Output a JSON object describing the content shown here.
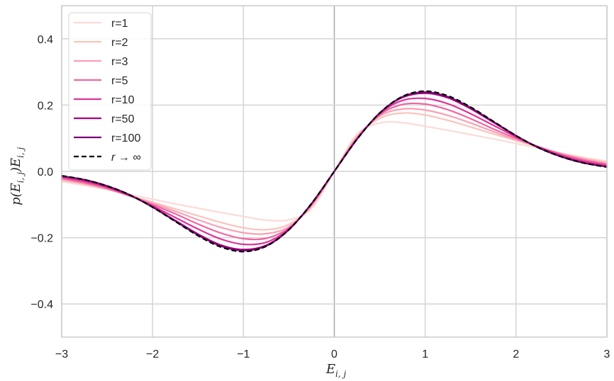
{
  "chart_data": {
    "type": "line",
    "title": "",
    "xlabel": "E_{i,j}",
    "ylabel": "p(E_{i,j})E_{i,j}",
    "xlim": [
      -3,
      3
    ],
    "ylim": [
      -0.5,
      0.5
    ],
    "grid": true,
    "legend_position": "upper left",
    "xticks": [
      -3,
      -2,
      -1,
      0,
      1,
      2,
      3
    ],
    "xtick_labels": [
      "−3",
      "−2",
      "−1",
      "0",
      "1",
      "2",
      "3"
    ],
    "yticks": [
      -0.4,
      -0.2,
      0.0,
      0.2,
      0.4
    ],
    "ytick_labels": [
      "−0.4",
      "−0.2",
      "0.0",
      "0.2",
      "0.4"
    ],
    "x_positive": [
      0,
      0.25,
      0.5,
      0.75,
      1.0,
      1.25,
      1.5,
      1.75,
      2.0,
      2.25,
      2.5,
      2.75,
      3.0
    ],
    "antisymmetric": true,
    "series": [
      {
        "name": "r=1",
        "color": "#fcdad6",
        "dashed": false,
        "values": [
          0,
          0.112,
          0.146,
          0.147,
          0.136,
          0.124,
          0.111,
          0.098,
          0.084,
          0.07,
          0.055,
          0.042,
          0.031
        ]
      },
      {
        "name": "r=2",
        "color": "#fbc3bd",
        "dashed": false,
        "values": [
          0,
          0.106,
          0.16,
          0.176,
          0.17,
          0.154,
          0.134,
          0.113,
          0.093,
          0.073,
          0.054,
          0.039,
          0.027
        ]
      },
      {
        "name": "r=3",
        "color": "#f9a0b4",
        "dashed": false,
        "values": [
          0,
          0.103,
          0.167,
          0.188,
          0.185,
          0.169,
          0.146,
          0.12,
          0.096,
          0.074,
          0.053,
          0.037,
          0.024
        ]
      },
      {
        "name": "r=5",
        "color": "#f066a2",
        "dashed": false,
        "values": [
          0,
          0.1,
          0.171,
          0.202,
          0.203,
          0.186,
          0.159,
          0.128,
          0.1,
          0.074,
          0.051,
          0.034,
          0.021
        ]
      },
      {
        "name": "r=10",
        "color": "#dd3497",
        "dashed": false,
        "values": [
          0,
          0.098,
          0.174,
          0.214,
          0.22,
          0.204,
          0.174,
          0.139,
          0.104,
          0.073,
          0.048,
          0.03,
          0.018
        ]
      },
      {
        "name": "r=50",
        "color": "#ae017e",
        "dashed": false,
        "values": [
          0,
          0.097,
          0.176,
          0.223,
          0.236,
          0.222,
          0.189,
          0.148,
          0.107,
          0.072,
          0.045,
          0.026,
          0.014
        ]
      },
      {
        "name": "r=100",
        "color": "#7a0177",
        "dashed": false,
        "values": [
          0,
          0.097,
          0.176,
          0.225,
          0.239,
          0.225,
          0.192,
          0.15,
          0.108,
          0.071,
          0.044,
          0.025,
          0.014
        ]
      },
      {
        "name": "r → ∞",
        "color": "#000000",
        "dashed": true,
        "values": [
          0,
          0.0967,
          0.176,
          0.226,
          0.242,
          0.228,
          0.194,
          0.151,
          0.108,
          0.071,
          0.044,
          0.025,
          0.013
        ]
      }
    ]
  },
  "axes": {
    "xlabel_main": "E",
    "xlabel_sub": "i, j",
    "ylabel_text": "p(E",
    "ylabel_sub": "i, j",
    "ylabel_mid": ")E",
    "ylabel_sub2": "i, j"
  },
  "legend": {
    "entries": [
      "r=1",
      "r=2",
      "r=3",
      "r=5",
      "r=10",
      "r=50",
      "r=100",
      "r → ∞"
    ]
  }
}
